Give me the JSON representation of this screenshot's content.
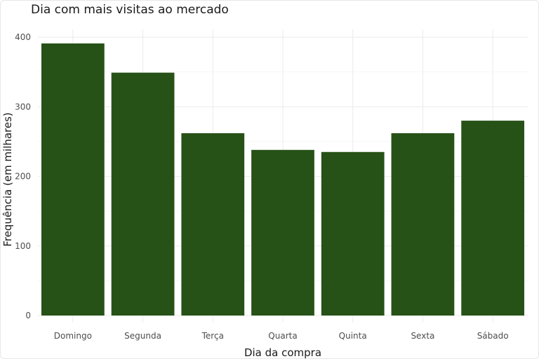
{
  "colors": {
    "bar": "#275217",
    "grid": "#ebebeb",
    "background": "#ffffff"
  },
  "chart_data": {
    "type": "bar",
    "title": "Dia com mais visitas ao mercado",
    "xlabel": "Dia da compra",
    "ylabel": "Frequência (em milhares)",
    "categories": [
      "Domingo",
      "Segunda",
      "Terça",
      "Quarta",
      "Quinta",
      "Sexta",
      "Sábado"
    ],
    "values": [
      391,
      349,
      262,
      238,
      235,
      262,
      280
    ],
    "ylim": [
      0,
      410
    ],
    "yticks": [
      0,
      100,
      200,
      300,
      400
    ],
    "grid": true,
    "legend": "none"
  }
}
